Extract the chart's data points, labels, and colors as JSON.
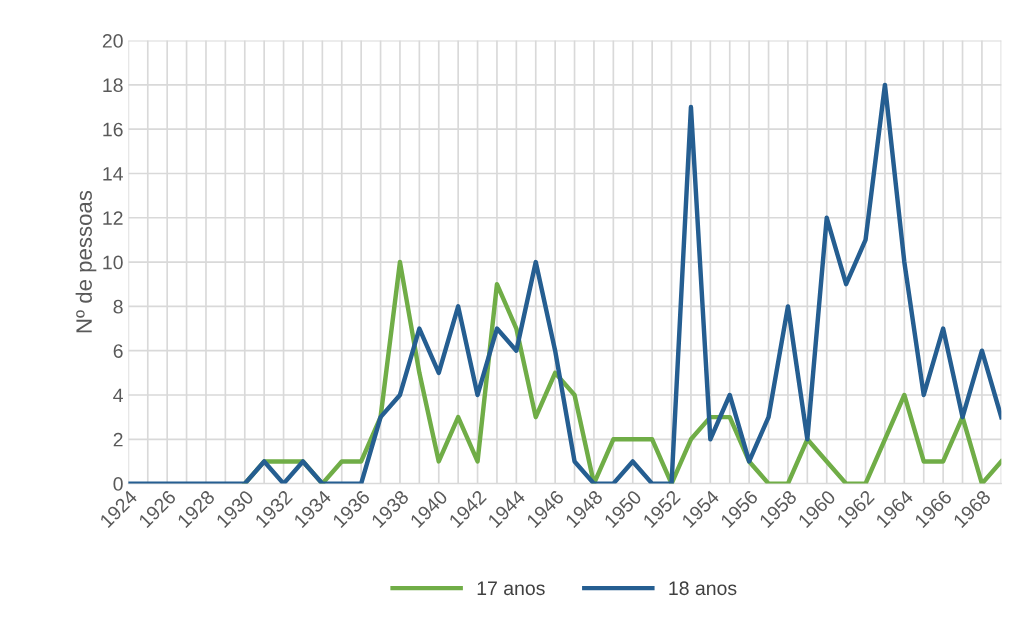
{
  "chart_data": {
    "type": "line",
    "ylabel": "Nº de pessoas",
    "x": [
      1924,
      1925,
      1926,
      1927,
      1928,
      1929,
      1930,
      1931,
      1932,
      1933,
      1934,
      1935,
      1936,
      1937,
      1938,
      1939,
      1940,
      1941,
      1942,
      1943,
      1944,
      1945,
      1946,
      1947,
      1948,
      1949,
      1950,
      1951,
      1952,
      1953,
      1954,
      1955,
      1956,
      1957,
      1958,
      1959,
      1960,
      1961,
      1962,
      1963,
      1964,
      1965,
      1966,
      1967,
      1968,
      1969
    ],
    "xlim": [
      1924,
      1969
    ],
    "xticks": [
      1924,
      1926,
      1928,
      1930,
      1932,
      1934,
      1936,
      1938,
      1940,
      1942,
      1944,
      1946,
      1948,
      1950,
      1952,
      1954,
      1956,
      1958,
      1960,
      1962,
      1964,
      1966,
      1968
    ],
    "ylim": [
      0,
      20
    ],
    "yticks": [
      0,
      2,
      4,
      6,
      8,
      10,
      12,
      14,
      16,
      18,
      20
    ],
    "grid": true,
    "legend": "bottom",
    "marker": "none",
    "line_style": "solid",
    "series": [
      {
        "name": "17 anos",
        "color": "#70ad47",
        "values": [
          null,
          null,
          null,
          null,
          null,
          null,
          0,
          1,
          1,
          1,
          0,
          1,
          1,
          3,
          10,
          5,
          1,
          3,
          1,
          9,
          7,
          3,
          5,
          4,
          0,
          2,
          2,
          2,
          0,
          2,
          3,
          3,
          1,
          0,
          0,
          2,
          1,
          0,
          0,
          2,
          4,
          1,
          1,
          3,
          0,
          1
        ]
      },
      {
        "name": "18 anos",
        "color": "#255e91",
        "values": [
          0,
          0,
          0,
          0,
          0,
          0,
          0,
          1,
          0,
          1,
          0,
          0,
          0,
          3,
          4,
          7,
          5,
          8,
          4,
          7,
          6,
          10,
          6,
          1,
          0,
          0,
          1,
          0,
          0,
          17,
          2,
          4,
          1,
          3,
          8,
          2,
          12,
          9,
          11,
          18,
          10,
          4,
          7,
          3,
          6,
          3
        ]
      }
    ]
  }
}
